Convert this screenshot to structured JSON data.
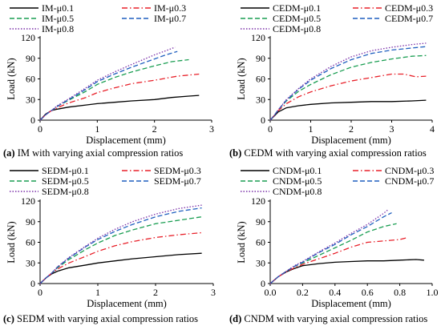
{
  "chart_data": [
    {
      "type": "line",
      "panel": "a",
      "caption": "IM with varying axial compression ratios",
      "xlabel": "Displacement (mm)",
      "ylabel": "Load (kN)",
      "xlim": [
        0,
        3
      ],
      "ylim": [
        0,
        120
      ],
      "xticks": [
        0,
        1,
        2,
        3
      ],
      "yticks": [
        0,
        30,
        60,
        90,
        120
      ],
      "grid": false,
      "legend_position": "top",
      "series": [
        {
          "name": "IM-μ0.1",
          "color": "#000000",
          "dash": "solid",
          "x": [
            0,
            0.1,
            0.2,
            0.3,
            0.5,
            0.8,
            1.0,
            1.3,
            1.6,
            2.0,
            2.3,
            2.6,
            2.78
          ],
          "y": [
            0,
            9,
            14,
            16,
            19,
            22,
            24,
            26,
            28,
            30,
            33,
            35,
            36
          ]
        },
        {
          "name": "IM-μ0.3",
          "color": "#e8212a",
          "dash": "dashdot",
          "x": [
            0,
            0.1,
            0.2,
            0.3,
            0.5,
            0.8,
            1.0,
            1.3,
            1.6,
            2.0,
            2.4,
            2.78
          ],
          "y": [
            0,
            8,
            14,
            18,
            25,
            33,
            40,
            47,
            53,
            58,
            64,
            67
          ]
        },
        {
          "name": "IM-μ0.5",
          "color": "#1a9e52",
          "dash": "dash",
          "x": [
            0,
            0.1,
            0.2,
            0.3,
            0.5,
            0.8,
            1.0,
            1.3,
            1.6,
            2.0,
            2.3,
            2.6
          ],
          "y": [
            0,
            8,
            14,
            20,
            29,
            42,
            52,
            62,
            70,
            79,
            85,
            88
          ]
        },
        {
          "name": "IM-μ0.7",
          "color": "#1f5fbf",
          "dash": "dash",
          "x": [
            0,
            0.1,
            0.2,
            0.3,
            0.5,
            0.8,
            1.0,
            1.3,
            1.6,
            2.0,
            2.2,
            2.4
          ],
          "y": [
            0,
            8,
            14,
            20,
            30,
            45,
            56,
            67,
            77,
            89,
            95,
            100
          ]
        },
        {
          "name": "IM-μ0.8",
          "color": "#7a2fa8",
          "dash": "dot",
          "x": [
            0,
            0.1,
            0.2,
            0.3,
            0.5,
            0.8,
            1.0,
            1.3,
            1.6,
            2.0,
            2.2,
            2.36
          ],
          "y": [
            0,
            8,
            14,
            21,
            31,
            47,
            58,
            70,
            81,
            95,
            101,
            106
          ]
        }
      ]
    },
    {
      "type": "line",
      "panel": "b",
      "caption": "CEDM with varying axial compression ratios",
      "xlabel": "Displacement (mm)",
      "ylabel": "Load (kN)",
      "xlim": [
        0,
        4
      ],
      "ylim": [
        0,
        120
      ],
      "xticks": [
        0,
        1,
        2,
        3,
        4
      ],
      "yticks": [
        0,
        30,
        60,
        90,
        120
      ],
      "grid": false,
      "legend_position": "top",
      "series": [
        {
          "name": "CEDM-μ0.1",
          "color": "#000000",
          "dash": "solid",
          "x": [
            0,
            0.1,
            0.2,
            0.4,
            0.7,
            1.0,
            1.5,
            2.0,
            2.5,
            3.0,
            3.5,
            3.85
          ],
          "y": [
            0,
            6,
            12,
            18,
            21,
            23,
            25,
            26,
            27,
            27,
            28,
            29
          ]
        },
        {
          "name": "CEDM-μ0.3",
          "color": "#e8212a",
          "dash": "dashdot",
          "x": [
            0,
            0.1,
            0.2,
            0.4,
            0.7,
            1.0,
            1.5,
            2.0,
            2.5,
            3.0,
            3.3,
            3.6,
            3.85
          ],
          "y": [
            0,
            7,
            14,
            24,
            34,
            41,
            50,
            57,
            62,
            67,
            67,
            63,
            64
          ]
        },
        {
          "name": "CEDM-μ0.5",
          "color": "#1a9e52",
          "dash": "dash",
          "x": [
            0,
            0.1,
            0.2,
            0.4,
            0.7,
            1.0,
            1.5,
            2.0,
            2.5,
            3.0,
            3.5,
            3.85
          ],
          "y": [
            0,
            7,
            15,
            28,
            42,
            52,
            66,
            77,
            84,
            89,
            93,
            94
          ]
        },
        {
          "name": "CEDM-μ0.7",
          "color": "#1f5fbf",
          "dash": "dash",
          "x": [
            0,
            0.1,
            0.2,
            0.4,
            0.7,
            1.0,
            1.5,
            2.0,
            2.5,
            3.0,
            3.5,
            3.85
          ],
          "y": [
            0,
            7,
            15,
            29,
            45,
            58,
            75,
            88,
            97,
            102,
            105,
            107
          ]
        },
        {
          "name": "CEDM-μ0.8",
          "color": "#7a2fa8",
          "dash": "dot",
          "x": [
            0,
            0.1,
            0.2,
            0.4,
            0.7,
            1.0,
            1.5,
            2.0,
            2.5,
            3.0,
            3.5,
            3.85
          ],
          "y": [
            0,
            7,
            15,
            30,
            46,
            60,
            78,
            92,
            101,
            106,
            110,
            112
          ]
        }
      ]
    },
    {
      "type": "line",
      "panel": "c",
      "caption": "SEDM with varying axial compression ratios",
      "xlabel": "Displacement (mm)",
      "ylabel": "Load (kN)",
      "xlim": [
        0,
        3
      ],
      "ylim": [
        0,
        120
      ],
      "xticks": [
        0,
        1,
        2,
        3
      ],
      "yticks": [
        0,
        30,
        60,
        90,
        120
      ],
      "grid": false,
      "legend_position": "top",
      "series": [
        {
          "name": "SEDM-μ0.1",
          "color": "#000000",
          "dash": "solid",
          "x": [
            0,
            0.1,
            0.2,
            0.3,
            0.5,
            0.8,
            1.0,
            1.3,
            1.6,
            2.0,
            2.4,
            2.8
          ],
          "y": [
            0,
            8,
            14,
            18,
            23,
            27,
            30,
            33,
            36,
            39,
            42,
            44
          ]
        },
        {
          "name": "SEDM-μ0.3",
          "color": "#e8212a",
          "dash": "dashdot",
          "x": [
            0,
            0.1,
            0.2,
            0.3,
            0.5,
            0.8,
            1.0,
            1.3,
            1.6,
            2.0,
            2.4,
            2.8
          ],
          "y": [
            0,
            8,
            15,
            21,
            30,
            40,
            47,
            55,
            61,
            67,
            71,
            74
          ]
        },
        {
          "name": "SEDM-μ0.5",
          "color": "#1a9e52",
          "dash": "dash",
          "x": [
            0,
            0.1,
            0.2,
            0.3,
            0.5,
            0.8,
            1.0,
            1.3,
            1.6,
            2.0,
            2.4,
            2.8
          ],
          "y": [
            0,
            8,
            15,
            23,
            35,
            50,
            59,
            70,
            78,
            87,
            92,
            97
          ]
        },
        {
          "name": "SEDM-μ0.7",
          "color": "#1f5fbf",
          "dash": "dash",
          "x": [
            0,
            0.1,
            0.2,
            0.3,
            0.5,
            0.8,
            1.0,
            1.3,
            1.6,
            2.0,
            2.4,
            2.8
          ],
          "y": [
            0,
            8,
            15,
            24,
            37,
            54,
            64,
            76,
            86,
            97,
            105,
            110
          ]
        },
        {
          "name": "SEDM-μ0.8",
          "color": "#7a2fa8",
          "dash": "dot",
          "x": [
            0,
            0.1,
            0.2,
            0.3,
            0.5,
            0.8,
            1.0,
            1.3,
            1.6,
            2.0,
            2.4,
            2.8
          ],
          "y": [
            0,
            8,
            15,
            24,
            38,
            55,
            66,
            79,
            90,
            101,
            109,
            114
          ]
        }
      ]
    },
    {
      "type": "line",
      "panel": "d",
      "caption": "CNDM with varying axial compression ratios",
      "xlabel": "Displacement (mm)",
      "ylabel": "Load (kN)",
      "xlim": [
        0,
        1.0
      ],
      "ylim": [
        0,
        120
      ],
      "xticks": [
        0.0,
        0.2,
        0.4,
        0.6,
        0.8,
        1.0
      ],
      "yticks": [
        0,
        30,
        60,
        90,
        120
      ],
      "grid": false,
      "legend_position": "top",
      "series": [
        {
          "name": "CNDM-μ0.1",
          "color": "#000000",
          "dash": "solid",
          "x": [
            0,
            0.05,
            0.1,
            0.15,
            0.2,
            0.3,
            0.4,
            0.5,
            0.6,
            0.7,
            0.8,
            0.9,
            0.95
          ],
          "y": [
            0,
            10,
            17,
            22,
            26,
            29,
            31,
            32,
            33,
            33,
            34,
            35,
            34
          ]
        },
        {
          "name": "CNDM-μ0.3",
          "color": "#e8212a",
          "dash": "dashdot",
          "x": [
            0,
            0.05,
            0.1,
            0.15,
            0.2,
            0.3,
            0.4,
            0.5,
            0.6,
            0.7,
            0.8,
            0.85
          ],
          "y": [
            0,
            10,
            17,
            23,
            28,
            36,
            44,
            53,
            60,
            62,
            64,
            67
          ]
        },
        {
          "name": "CNDM-μ0.5",
          "color": "#1a9e52",
          "dash": "dash",
          "x": [
            0,
            0.05,
            0.1,
            0.15,
            0.2,
            0.3,
            0.4,
            0.5,
            0.6,
            0.7,
            0.78
          ],
          "y": [
            0,
            10,
            18,
            25,
            30,
            41,
            52,
            63,
            75,
            83,
            87
          ]
        },
        {
          "name": "CNDM-μ0.7",
          "color": "#1f5fbf",
          "dash": "dash",
          "x": [
            0,
            0.05,
            0.1,
            0.15,
            0.2,
            0.3,
            0.4,
            0.5,
            0.6,
            0.7,
            0.75
          ],
          "y": [
            0,
            10,
            18,
            25,
            31,
            45,
            57,
            71,
            83,
            97,
            103
          ]
        },
        {
          "name": "CNDM-μ0.8",
          "color": "#7a2fa8",
          "dash": "dot",
          "x": [
            0,
            0.05,
            0.1,
            0.15,
            0.2,
            0.3,
            0.4,
            0.5,
            0.6,
            0.7,
            0.73
          ],
          "y": [
            0,
            10,
            18,
            26,
            32,
            46,
            59,
            73,
            86,
            102,
            108
          ]
        }
      ]
    }
  ]
}
